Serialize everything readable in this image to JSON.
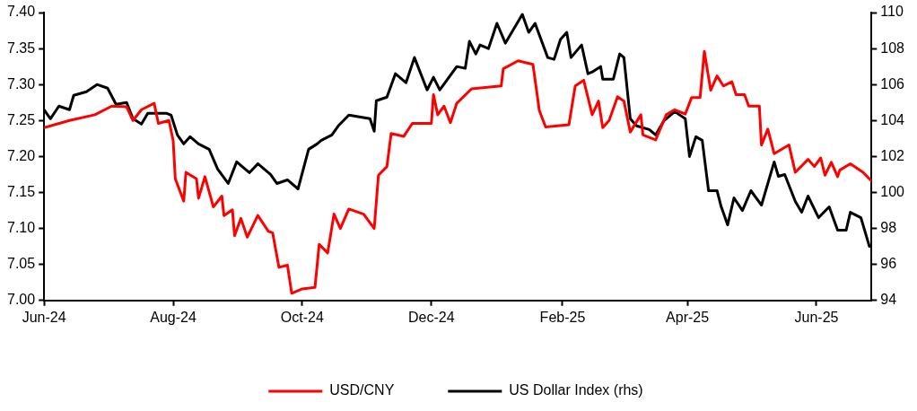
{
  "chart_data": {
    "type": "line",
    "legend": "bottom",
    "marker": "none",
    "line_style": "solid",
    "xlim": [
      "2024-06-01",
      "2025-06-27"
    ],
    "xticks": [
      {
        "value": "2024-06-01",
        "label": "Jun-24"
      },
      {
        "value": "2024-08-01",
        "label": "Aug-24"
      },
      {
        "value": "2024-10-01",
        "label": "Oct-24"
      },
      {
        "value": "2024-12-01",
        "label": "Dec-24"
      },
      {
        "value": "2025-02-01",
        "label": "Feb-25"
      },
      {
        "value": "2025-04-01",
        "label": "Apr-25"
      },
      {
        "value": "2025-06-01",
        "label": "Jun-25"
      }
    ],
    "ylim": [
      7.0,
      7.4
    ],
    "yticks": [
      {
        "value": 7.0,
        "label": "7.00"
      },
      {
        "value": 7.05,
        "label": "7.05"
      },
      {
        "value": 7.1,
        "label": "7.10"
      },
      {
        "value": 7.15,
        "label": "7.15"
      },
      {
        "value": 7.2,
        "label": "7.20"
      },
      {
        "value": 7.25,
        "label": "7.25"
      },
      {
        "value": 7.3,
        "label": "7.30"
      },
      {
        "value": 7.35,
        "label": "7.35"
      },
      {
        "value": 7.4,
        "label": "7.40"
      }
    ],
    "y2lim": [
      94,
      110
    ],
    "y2ticks": [
      94,
      96,
      98,
      100,
      102,
      104,
      106,
      108,
      110
    ],
    "series": [
      {
        "name": "USD/CNY",
        "color": "#ff0000",
        "x": [
          "2024-06-01",
          "2024-06-13",
          "2024-06-25",
          "2024-07-03",
          "2024-07-10",
          "2024-07-13",
          "2024-07-17",
          "2024-07-23",
          "2024-07-25",
          "2024-07-30",
          "2024-08-01",
          "2024-08-02",
          "2024-08-06",
          "2024-08-07",
          "2024-08-12",
          "2024-08-13",
          "2024-08-16",
          "2024-08-20",
          "2024-08-24",
          "2024-08-25",
          "2024-08-29",
          "2024-08-30",
          "2024-09-02",
          "2024-09-05",
          "2024-09-10",
          "2024-09-15",
          "2024-09-17",
          "2024-09-20",
          "2024-09-24",
          "2024-09-26",
          "2024-10-01",
          "2024-10-07",
          "2024-10-09",
          "2024-10-13",
          "2024-10-16",
          "2024-10-19",
          "2024-10-23",
          "2024-10-30",
          "2024-11-04",
          "2024-11-06",
          "2024-11-10",
          "2024-11-12",
          "2024-11-18",
          "2024-11-22",
          "2024-12-01",
          "2024-12-02",
          "2024-12-04",
          "2024-12-07",
          "2024-12-10",
          "2024-12-13",
          "2024-12-20",
          "2025-01-03",
          "2025-01-04",
          "2025-01-11",
          "2025-01-18",
          "2025-01-20",
          "2025-01-21",
          "2025-01-24",
          "2025-02-04",
          "2025-02-07",
          "2025-02-11",
          "2025-02-15",
          "2025-02-18",
          "2025-02-20",
          "2025-02-23",
          "2025-02-27",
          "2025-03-02",
          "2025-03-05",
          "2025-03-10",
          "2025-03-11",
          "2025-03-17",
          "2025-03-22",
          "2025-03-26",
          "2025-03-31",
          "2025-04-03",
          "2025-04-07",
          "2025-04-09",
          "2025-04-12",
          "2025-04-15",
          "2025-04-18",
          "2025-04-22",
          "2025-04-24",
          "2025-04-28",
          "2025-04-30",
          "2025-05-05",
          "2025-05-06",
          "2025-05-09",
          "2025-05-12",
          "2025-05-19",
          "2025-05-22",
          "2025-05-28",
          "2025-05-31",
          "2025-06-03",
          "2025-06-05",
          "2025-06-08",
          "2025-06-11",
          "2025-06-12",
          "2025-06-17",
          "2025-06-23",
          "2025-06-27"
        ],
        "values": [
          7.24,
          7.25,
          7.258,
          7.27,
          7.269,
          7.25,
          7.265,
          7.274,
          7.246,
          7.25,
          7.222,
          7.169,
          7.138,
          7.178,
          7.169,
          7.142,
          7.172,
          7.13,
          7.145,
          7.118,
          7.126,
          7.09,
          7.114,
          7.088,
          7.118,
          7.096,
          7.094,
          7.046,
          7.049,
          7.01,
          7.016,
          7.018,
          7.078,
          7.066,
          7.12,
          7.1,
          7.127,
          7.12,
          7.1,
          7.174,
          7.186,
          7.232,
          7.228,
          7.246,
          7.246,
          7.286,
          7.258,
          7.27,
          7.247,
          7.274,
          7.294,
          7.298,
          7.322,
          7.333,
          7.328,
          7.286,
          7.264,
          7.241,
          7.244,
          7.298,
          7.306,
          7.258,
          7.277,
          7.24,
          7.25,
          7.283,
          7.277,
          7.234,
          7.258,
          7.23,
          7.223,
          7.258,
          7.265,
          7.259,
          7.282,
          7.282,
          7.346,
          7.292,
          7.312,
          7.298,
          7.304,
          7.286,
          7.286,
          7.27,
          7.27,
          7.216,
          7.238,
          7.204,
          7.216,
          7.178,
          7.196,
          7.186,
          7.198,
          7.174,
          7.192,
          7.172,
          7.181,
          7.19,
          7.178,
          7.166
        ]
      },
      {
        "name": "US Dollar Index (rhs)",
        "color": "#000000",
        "axis": "y2",
        "x": [
          "2024-06-01",
          "2024-06-04",
          "2024-06-08",
          "2024-06-13",
          "2024-06-15",
          "2024-06-21",
          "2024-06-26",
          "2024-07-01",
          "2024-07-05",
          "2024-07-10",
          "2024-07-13",
          "2024-07-17",
          "2024-07-20",
          "2024-07-29",
          "2024-07-31",
          "2024-08-03",
          "2024-08-06",
          "2024-08-09",
          "2024-08-13",
          "2024-08-18",
          "2024-08-22",
          "2024-08-27",
          "2024-08-31",
          "2024-09-06",
          "2024-09-10",
          "2024-09-16",
          "2024-09-19",
          "2024-09-24",
          "2024-09-29",
          "2024-10-04",
          "2024-10-08",
          "2024-10-10",
          "2024-10-15",
          "2024-10-18",
          "2024-10-23",
          "2024-11-02",
          "2024-11-04",
          "2024-11-05",
          "2024-11-10",
          "2024-11-14",
          "2024-11-19",
          "2024-11-23",
          "2024-11-29",
          "2024-12-02",
          "2024-12-05",
          "2024-12-13",
          "2024-12-17",
          "2024-12-19",
          "2024-12-22",
          "2024-12-24",
          "2024-12-28",
          "2025-01-01",
          "2025-01-05",
          "2025-01-13",
          "2025-01-16",
          "2025-01-19",
          "2025-01-25",
          "2025-01-28",
          "2025-01-31",
          "2025-02-03",
          "2025-02-05",
          "2025-02-10",
          "2025-02-13",
          "2025-02-15",
          "2025-02-19",
          "2025-02-20",
          "2025-02-25",
          "2025-02-28",
          "2025-03-02",
          "2025-03-05",
          "2025-03-08",
          "2025-03-14",
          "2025-03-17",
          "2025-03-21",
          "2025-03-26",
          "2025-03-31",
          "2025-04-02",
          "2025-04-05",
          "2025-04-08",
          "2025-04-11",
          "2025-04-15",
          "2025-04-17",
          "2025-04-20",
          "2025-04-23",
          "2025-04-27",
          "2025-05-01",
          "2025-05-06",
          "2025-05-09",
          "2025-05-12",
          "2025-05-14",
          "2025-05-17",
          "2025-05-22",
          "2025-05-25",
          "2025-05-28",
          "2025-06-02",
          "2025-06-07",
          "2025-06-11",
          "2025-06-15",
          "2025-06-17",
          "2025-06-22",
          "2025-06-26"
        ],
        "values": [
          104.6,
          104.1,
          104.8,
          104.6,
          105.4,
          105.6,
          106.0,
          105.8,
          104.9,
          105.0,
          104.1,
          103.8,
          104.4,
          104.4,
          104.3,
          103.2,
          102.7,
          103.1,
          102.7,
          102.4,
          101.3,
          100.5,
          101.7,
          101.1,
          101.6,
          101.0,
          100.5,
          100.7,
          100.2,
          102.4,
          102.7,
          102.9,
          103.2,
          103.7,
          104.3,
          104.1,
          103.4,
          105.1,
          105.3,
          106.6,
          106.1,
          107.5,
          105.7,
          106.4,
          105.7,
          107.0,
          106.9,
          108.4,
          107.7,
          108.2,
          108.0,
          109.4,
          108.3,
          109.9,
          108.9,
          109.4,
          107.5,
          107.4,
          108.5,
          108.9,
          107.5,
          108.2,
          106.6,
          106.7,
          107.0,
          106.3,
          106.3,
          107.7,
          107.5,
          104.1,
          103.7,
          103.5,
          103.2,
          104.0,
          104.5,
          104.1,
          102.0,
          103.1,
          102.9,
          100.1,
          100.1,
          99.2,
          98.2,
          99.7,
          99.0,
          100.1,
          99.3,
          100.5,
          101.7,
          100.9,
          101.0,
          99.5,
          98.9,
          99.8,
          98.6,
          99.2,
          97.9,
          97.9,
          98.9,
          98.6,
          97.0
        ]
      }
    ]
  }
}
